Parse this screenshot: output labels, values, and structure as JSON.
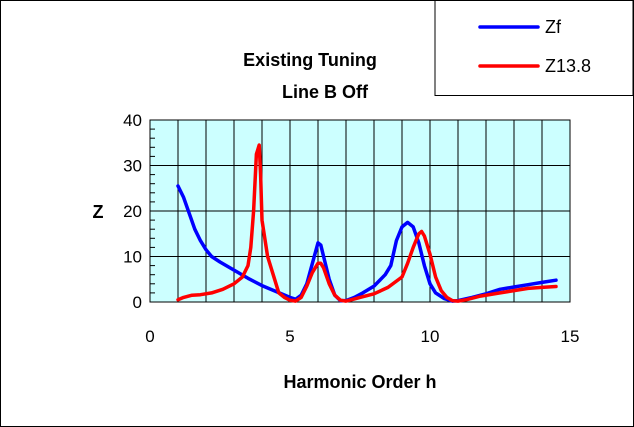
{
  "chart_data": {
    "type": "line",
    "title_lines": [
      "Existing Tuning",
      "Line B Off"
    ],
    "xlabel": "Harmonic Order h",
    "ylabel": "Z",
    "xlim": [
      0,
      15
    ],
    "ylim": [
      0,
      40
    ],
    "x_ticks": [
      0,
      5,
      10,
      15
    ],
    "y_ticks": [
      0,
      10,
      20,
      30,
      40
    ],
    "x_minor_step": 1,
    "y_minor_step": 2,
    "grid": true,
    "plot_background": "#ccffff",
    "legend_position": "top-right",
    "series": [
      {
        "name": "Zf",
        "color": "#0000ff",
        "points": [
          [
            1.0,
            25.5
          ],
          [
            1.2,
            23.0
          ],
          [
            1.4,
            19.5
          ],
          [
            1.6,
            16.0
          ],
          [
            1.8,
            13.5
          ],
          [
            2.0,
            11.5
          ],
          [
            2.2,
            10.0
          ],
          [
            2.5,
            8.8
          ],
          [
            3.0,
            7.0
          ],
          [
            3.5,
            5.2
          ],
          [
            4.0,
            3.6
          ],
          [
            4.5,
            2.3
          ],
          [
            5.0,
            1.0
          ],
          [
            5.2,
            0.6
          ],
          [
            5.4,
            1.5
          ],
          [
            5.6,
            4.0
          ],
          [
            5.8,
            8.5
          ],
          [
            6.0,
            13.0
          ],
          [
            6.1,
            12.5
          ],
          [
            6.2,
            10.0
          ],
          [
            6.4,
            5.0
          ],
          [
            6.6,
            1.5
          ],
          [
            6.8,
            0.3
          ],
          [
            7.0,
            0.3
          ],
          [
            7.3,
            1.0
          ],
          [
            7.6,
            2.0
          ],
          [
            8.0,
            3.5
          ],
          [
            8.4,
            6.0
          ],
          [
            8.6,
            8.0
          ],
          [
            8.8,
            13.5
          ],
          [
            9.0,
            16.5
          ],
          [
            9.2,
            17.5
          ],
          [
            9.4,
            16.5
          ],
          [
            9.6,
            13.0
          ],
          [
            9.8,
            8.0
          ],
          [
            10.0,
            4.0
          ],
          [
            10.2,
            2.0
          ],
          [
            10.5,
            0.8
          ],
          [
            10.8,
            0.2
          ],
          [
            11.0,
            0.3
          ],
          [
            11.5,
            1.0
          ],
          [
            12.0,
            1.8
          ],
          [
            12.5,
            2.8
          ],
          [
            13.0,
            3.3
          ],
          [
            13.5,
            3.8
          ],
          [
            14.0,
            4.3
          ],
          [
            14.5,
            4.8
          ]
        ]
      },
      {
        "name": "Z13.8",
        "color": "#ff0000",
        "points": [
          [
            1.0,
            0.5
          ],
          [
            1.2,
            1.0
          ],
          [
            1.5,
            1.5
          ],
          [
            1.8,
            1.6
          ],
          [
            2.2,
            2.0
          ],
          [
            2.6,
            2.8
          ],
          [
            3.0,
            4.0
          ],
          [
            3.3,
            5.5
          ],
          [
            3.5,
            8.0
          ],
          [
            3.6,
            12.0
          ],
          [
            3.7,
            20.0
          ],
          [
            3.8,
            32.5
          ],
          [
            3.85,
            33.5
          ],
          [
            3.9,
            34.5
          ],
          [
            3.95,
            28.0
          ],
          [
            4.0,
            18.0
          ],
          [
            4.2,
            10.0
          ],
          [
            4.4,
            6.0
          ],
          [
            4.6,
            2.0
          ],
          [
            4.8,
            1.0
          ],
          [
            5.0,
            0.4
          ],
          [
            5.2,
            0.2
          ],
          [
            5.4,
            1.0
          ],
          [
            5.6,
            3.5
          ],
          [
            5.8,
            6.5
          ],
          [
            6.0,
            8.5
          ],
          [
            6.1,
            8.5
          ],
          [
            6.2,
            7.5
          ],
          [
            6.4,
            4.0
          ],
          [
            6.6,
            1.5
          ],
          [
            6.8,
            0.4
          ],
          [
            7.0,
            0.2
          ],
          [
            7.2,
            0.5
          ],
          [
            7.5,
            1.0
          ],
          [
            8.0,
            1.8
          ],
          [
            8.5,
            3.2
          ],
          [
            9.0,
            5.5
          ],
          [
            9.2,
            8.5
          ],
          [
            9.4,
            12.0
          ],
          [
            9.5,
            13.5
          ],
          [
            9.6,
            15.0
          ],
          [
            9.7,
            15.5
          ],
          [
            9.8,
            14.5
          ],
          [
            10.0,
            10.5
          ],
          [
            10.2,
            5.5
          ],
          [
            10.4,
            2.5
          ],
          [
            10.6,
            1.0
          ],
          [
            10.8,
            0.3
          ],
          [
            11.0,
            0.2
          ],
          [
            11.3,
            0.5
          ],
          [
            11.8,
            1.3
          ],
          [
            12.5,
            2.0
          ],
          [
            13.0,
            2.5
          ],
          [
            13.5,
            3.0
          ],
          [
            14.0,
            3.2
          ],
          [
            14.5,
            3.4
          ]
        ]
      }
    ]
  }
}
